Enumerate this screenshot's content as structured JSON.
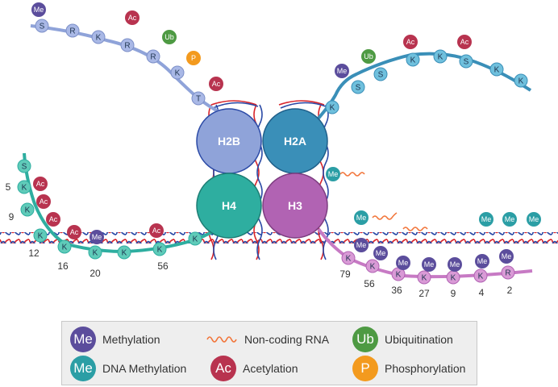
{
  "colors": {
    "h2b": "#8fa3d9",
    "h2a": "#3a8fb8",
    "h4": "#2eaea0",
    "h3": "#b163b3",
    "methylation": "#5b4d9c",
    "dna_methylation": "#2b9ea5",
    "acetylation": "#b8334f",
    "ubiquitination": "#4e9a43",
    "phosphorylation": "#f39a1e",
    "dna_red": "#d8262c",
    "dna_blue": "#2b4aa6",
    "ncrna": "#f2753a"
  },
  "histones": {
    "h2b": "H2B",
    "h2a": "H2A",
    "h4": "H4",
    "h3": "H3"
  },
  "marks": {
    "me": "Me",
    "ac": "Ac",
    "ub": "Ub",
    "p": "P"
  },
  "tails": {
    "h2b_residues": [
      "S",
      "R",
      "K",
      "R",
      "R",
      "K",
      "T"
    ],
    "h2a_residues": [
      "K",
      "S",
      "S",
      "K",
      "K",
      "S",
      "K",
      "K"
    ],
    "h4_residues": [
      "S",
      "K",
      "K",
      "K",
      "K",
      "K",
      "K",
      "K",
      "K"
    ],
    "h3_residues": [
      "K",
      "K",
      "K",
      "K",
      "K",
      "K",
      "R"
    ],
    "h4_positions": [
      "5",
      "9",
      "12",
      "16",
      "20",
      "56"
    ],
    "h3_positions": [
      "79",
      "56",
      "36",
      "27",
      "9",
      "4",
      "2"
    ]
  },
  "legend": {
    "methylation": "Methylation",
    "dna_methylation": "DNA Methylation",
    "ncrna": "Non-coding RNA",
    "acetylation": "Acetylation",
    "ubiquitination": "Ubiquitination",
    "phosphorylation": "Phosphorylation"
  }
}
